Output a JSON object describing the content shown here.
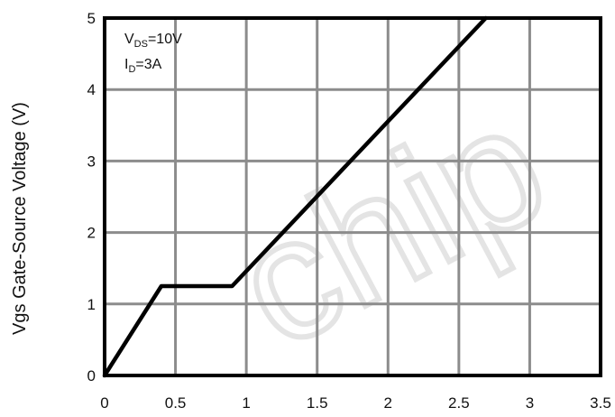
{
  "chart_data": {
    "type": "line",
    "title": "",
    "xlabel": "",
    "ylabel": "Vgs Gate-Source Voltage (V)",
    "xlim": [
      0,
      3.5
    ],
    "ylim": [
      0,
      5
    ],
    "x_ticks": [
      "0",
      "0.5",
      "1",
      "1.5",
      "2",
      "2.5",
      "3",
      "3.5"
    ],
    "y_ticks": [
      "0",
      "1",
      "2",
      "3",
      "4",
      "5"
    ],
    "grid": true,
    "series": [
      {
        "x": [
          0,
          0.4,
          0.9,
          2.69
        ],
        "y": [
          0,
          1.25,
          1.25,
          5
        ]
      }
    ],
    "annotations": {
      "vds_main": "V",
      "vds_sub": "DS",
      "vds_value": "=10V",
      "id_main": "I",
      "id_sub": "D",
      "id_value": "=3A"
    },
    "line_color": "#000000",
    "grid_color": "#8c8c8c",
    "watermark_text": "chip"
  }
}
